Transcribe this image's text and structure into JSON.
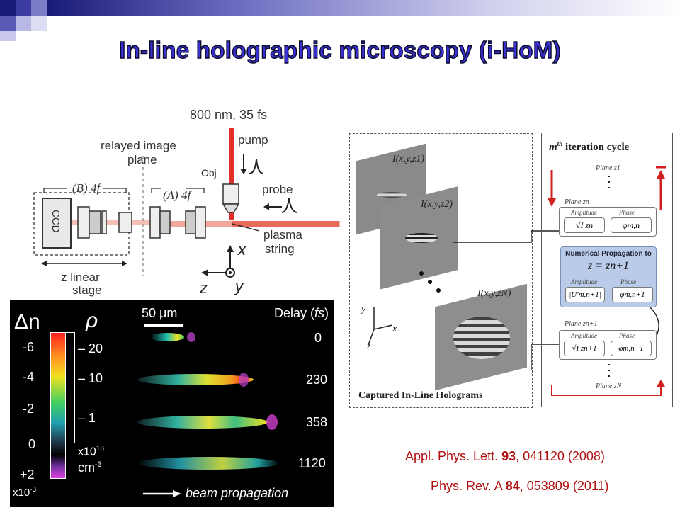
{
  "slide": {
    "title": "In-line holographic microscopy (i-HoM)"
  },
  "schematic": {
    "laser_label": "800 nm, 35 fs",
    "pump_label": "pump",
    "probe_label": "probe",
    "obj_label": "Obj",
    "relayed_label_1": "relayed image",
    "relayed_label_2": "plane",
    "b4f_label": "(B) 4f",
    "a4f_label": "(A) 4f",
    "ccd_label": "CCD",
    "plasma_label_1": "plasma",
    "plasma_label_2": "string",
    "stage_label_1": "z linear",
    "stage_label_2": "stage",
    "axis_x": "x",
    "axis_y": "y",
    "axis_z": "z"
  },
  "plasma_panel": {
    "dn_label": "Δn",
    "rho_label": "ρ",
    "dn_ticks": [
      "-6",
      "-4",
      "-2",
      "0",
      "+2"
    ],
    "dn_unit": "x10",
    "dn_exp": "-3",
    "rho_ticks": [
      "20",
      "10",
      "1"
    ],
    "rho_unit": "x10",
    "rho_exp": "18",
    "rho_cm": "cm",
    "rho_cm_exp": "-3",
    "scale_bar": "50 μm",
    "delay_header": "Delay (fs)",
    "delays": [
      "0",
      "230",
      "358",
      "1120"
    ],
    "beam_label": "beam propagation"
  },
  "hologram_panel": {
    "holo_labels": [
      "I(x,y,z1)",
      "I(x,y,z2)",
      "I(x,y,zN)"
    ],
    "caption": "Captured In-Line Holograms",
    "axis_y": "y",
    "axis_x": "x",
    "axis_z": "z"
  },
  "iteration_panel": {
    "title": "m th iteration cycle",
    "plane_z1": "Plane z1",
    "plane_zn": "Plane zn",
    "plane_zn1": "Plane zn+1",
    "plane_zN": "Plane zN",
    "amplitude": "Amplitude",
    "phase": "Phase",
    "amp_n": "√I zn",
    "phase_n": "φm,n",
    "numerical_title": "Numerical Propagation to",
    "numerical_eq": "z = zn+1",
    "amp_u": "|U′m,n+1|",
    "phase_u": "φm,n+1",
    "amp_n1": "√I zn+1",
    "phase_n1": "φm,n+1"
  },
  "references": [
    {
      "journal": "Appl. Phys. Lett.",
      "volume": "93",
      "rest": ", 041120 (2008)"
    },
    {
      "journal": "Phys. Rev. A",
      "volume": "84",
      "rest": ", 053809 (2011)"
    }
  ],
  "colors": {
    "title_fill": "#3a2fd0",
    "laser_red": "#e0302a",
    "ref_red": "#b01010",
    "numerical_blue": "#b9cbe8"
  }
}
